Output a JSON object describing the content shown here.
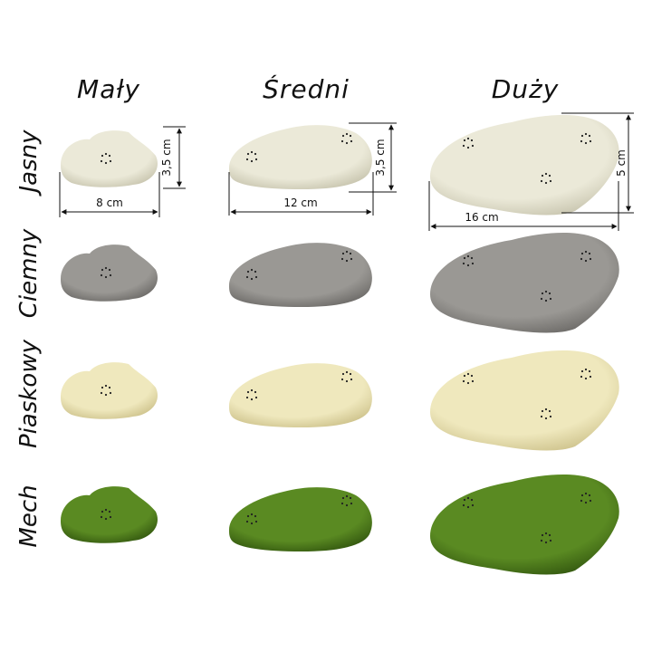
{
  "columns": [
    {
      "label": "Mały"
    },
    {
      "label": "Średni"
    },
    {
      "label": "Duży"
    }
  ],
  "rows": [
    {
      "label": "Jasny",
      "color": "#ebe9d8",
      "shade": "#c9c6b0"
    },
    {
      "label": "Ciemny",
      "color": "#9a9894",
      "shade": "#6e6c69"
    },
    {
      "label": "Piaskowy",
      "color": "#efe8bd",
      "shade": "#cfc48e"
    },
    {
      "label": "Mech",
      "color": "#5a8a22",
      "shade": "#355a10"
    }
  ],
  "dimensions": {
    "small": {
      "width": "8 cm",
      "height": "3,5 cm"
    },
    "medium": {
      "width": "12 cm",
      "height": "3,5 cm"
    },
    "large": {
      "width": "16 cm",
      "height": "5 cm"
    }
  }
}
